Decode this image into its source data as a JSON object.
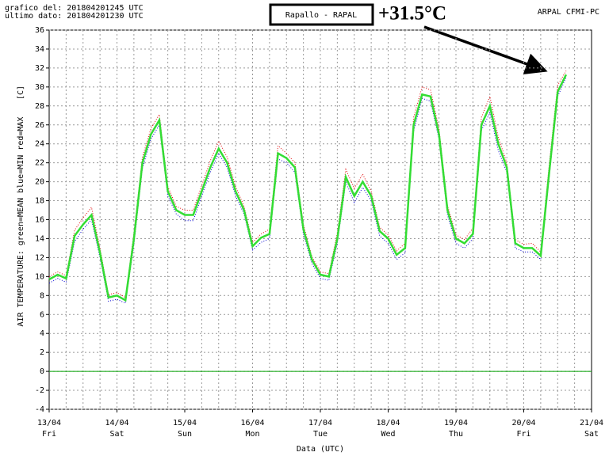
{
  "chart_data": {
    "type": "line",
    "header_left": [
      "grafico del: 201804201245 UTC",
      "ultimo dato: 201804201230 UTC"
    ],
    "header_right": "ARPAL CFMI-PC",
    "station": "Rapallo - RAPAL",
    "annotation": "+31.5°C",
    "y_label": "AIR TEMPERATURE: green=MEAN  blue=MIN  red=MAX",
    "y_unit": "[C]",
    "x_label": "Data (UTC)",
    "categories": [
      "13/04",
      null,
      null,
      null,
      null,
      null,
      null,
      null,
      "14/04",
      null,
      null,
      null,
      null,
      null,
      null,
      null,
      "15/04",
      null,
      null,
      null,
      null,
      null,
      null,
      null,
      "16/04",
      null,
      null,
      null,
      null,
      null,
      null,
      null,
      "17/04",
      null,
      null,
      null,
      null,
      null,
      null,
      null,
      "18/04",
      null,
      null,
      null,
      null,
      null,
      null,
      null,
      "19/04",
      null,
      null,
      null,
      null,
      null,
      null,
      null,
      "20/04",
      null,
      null,
      null,
      null,
      null,
      null,
      null,
      "21/04"
    ],
    "weekdays": [
      "Fri",
      null,
      null,
      null,
      null,
      null,
      null,
      null,
      "Sat",
      null,
      null,
      null,
      null,
      null,
      null,
      null,
      "Sun",
      null,
      null,
      null,
      null,
      null,
      null,
      null,
      "Mon",
      null,
      null,
      null,
      null,
      null,
      null,
      null,
      "Tue",
      null,
      null,
      null,
      null,
      null,
      null,
      null,
      "Wed",
      null,
      null,
      null,
      null,
      null,
      null,
      null,
      "Thu",
      null,
      null,
      null,
      null,
      null,
      null,
      null,
      "Fri",
      null,
      null,
      null,
      null,
      null,
      null,
      null,
      "Sat"
    ],
    "series": [
      {
        "name": "MAX",
        "color": "#e00000",
        "dash": true,
        "values": [
          10.0,
          10.5,
          10.1,
          14.9,
          16.2,
          17.3,
          13.0,
          8.1,
          8.3,
          7.8,
          14.6,
          22.6,
          25.6,
          27.1,
          19.5,
          17.4,
          17.0,
          17.0,
          19.6,
          22.2,
          24.3,
          22.6,
          19.5,
          17.4,
          13.6,
          14.5,
          15.0,
          23.8,
          23.0,
          22.0,
          15.5,
          12.1,
          10.5,
          10.3,
          14.6,
          21.3,
          19.3,
          20.8,
          19.0,
          15.2,
          14.4,
          12.7,
          13.5,
          26.8,
          30.0,
          29.7,
          25.6,
          17.5,
          14.4,
          13.9,
          15.1,
          26.8,
          29.0,
          24.7,
          22.0,
          13.9,
          13.4,
          13.5,
          12.6,
          21.8,
          30.2,
          31.7,
          null,
          null,
          null
        ]
      },
      {
        "name": "MIN",
        "color": "#0000d0",
        "dash": true,
        "values": [
          9.3,
          9.8,
          9.4,
          13.7,
          15.0,
          16.0,
          12.0,
          7.4,
          7.6,
          7.2,
          13.4,
          21.4,
          24.5,
          26.0,
          18.5,
          16.6,
          15.9,
          15.9,
          18.5,
          21.0,
          23.0,
          21.5,
          18.5,
          16.6,
          12.8,
          13.6,
          14.0,
          22.4,
          22.0,
          21.0,
          14.5,
          11.4,
          9.8,
          9.6,
          13.5,
          20.0,
          17.8,
          19.4,
          18.0,
          14.3,
          13.5,
          11.8,
          12.5,
          25.3,
          28.8,
          28.5,
          24.5,
          16.5,
          13.5,
          13.0,
          14.0,
          25.4,
          27.3,
          23.3,
          21.0,
          13.0,
          12.6,
          12.6,
          11.8,
          20.5,
          29.0,
          31.0,
          null,
          null,
          null
        ]
      },
      {
        "name": "MEAN",
        "color": "#33dd33",
        "dash": false,
        "values": [
          9.7,
          10.2,
          9.8,
          14.3,
          15.5,
          16.5,
          12.5,
          7.8,
          8.0,
          7.5,
          14,
          22,
          25,
          26.5,
          19,
          17,
          16.5,
          16.5,
          19,
          21.5,
          23.5,
          22,
          19,
          17,
          13.2,
          14.1,
          14.5,
          23,
          22.5,
          21.5,
          15,
          11.8,
          10.2,
          10.0,
          14,
          20.5,
          18.5,
          20,
          18.5,
          14.8,
          14,
          12.3,
          13,
          26,
          29.2,
          29,
          25,
          17,
          14,
          13.5,
          14.5,
          26,
          28,
          24,
          21.5,
          13.5,
          13,
          13,
          12.2,
          21,
          29.5,
          31.3,
          null,
          null,
          null
        ]
      }
    ],
    "zero_line": {
      "value": 0,
      "color": "#00a000"
    },
    "ylim": [
      -4,
      36
    ],
    "yticks": [
      -4,
      -2,
      0,
      2,
      4,
      6,
      8,
      10,
      12,
      14,
      16,
      18,
      20,
      22,
      24,
      26,
      28,
      30,
      32,
      34,
      36
    ],
    "grid": true
  }
}
